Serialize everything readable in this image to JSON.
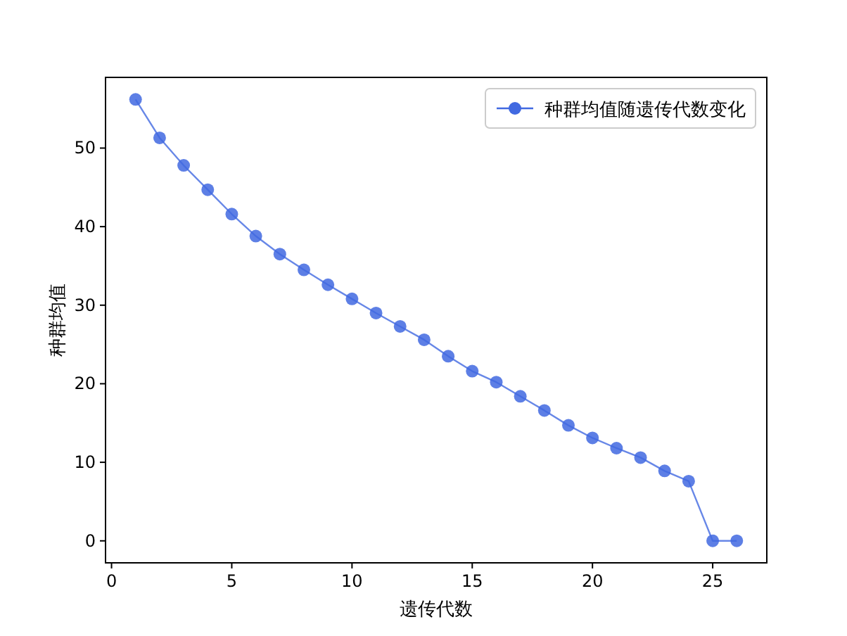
{
  "chart_data": {
    "type": "line",
    "xlabel": "遗传代数",
    "ylabel": "种群均值",
    "x": [
      1,
      2,
      3,
      4,
      5,
      6,
      7,
      8,
      9,
      10,
      11,
      12,
      13,
      14,
      15,
      16,
      17,
      18,
      19,
      20,
      21,
      22,
      23,
      24,
      25,
      26
    ],
    "series": [
      {
        "name": "种群均值随遗传代数变化",
        "color": "#4169e1",
        "values": [
          56.2,
          51.3,
          47.8,
          44.7,
          41.6,
          38.8,
          36.5,
          34.5,
          32.6,
          30.8,
          29.0,
          27.3,
          25.6,
          23.5,
          21.6,
          20.2,
          18.4,
          16.6,
          14.7,
          13.1,
          11.8,
          10.6,
          8.9,
          7.6,
          0,
          0
        ]
      }
    ],
    "xlim": [
      -0.25,
      27.25
    ],
    "ylim": [
      -2.8,
      59
    ],
    "xticks": [
      0,
      5,
      10,
      15,
      20,
      25
    ],
    "yticks": [
      0,
      10,
      20,
      30,
      40,
      50
    ],
    "marker": "circle",
    "line_style": "solid",
    "grid": false,
    "legend": "top right"
  }
}
